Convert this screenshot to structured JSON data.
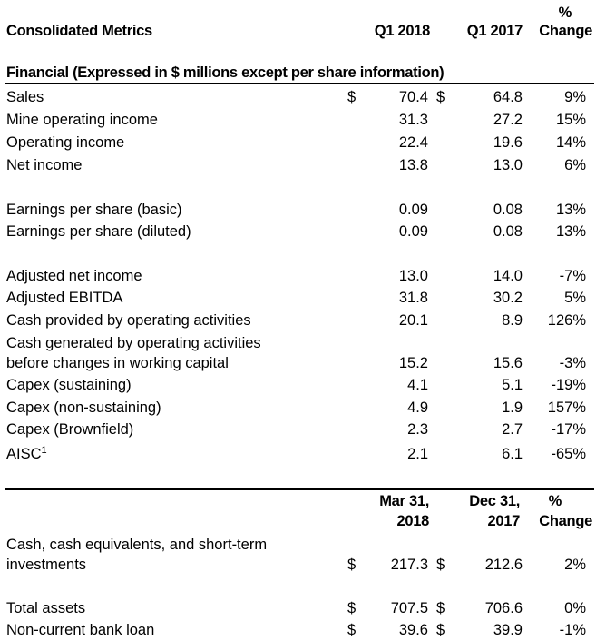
{
  "header": {
    "title": "Consolidated Metrics",
    "col1": "Q1 2018",
    "col2": "Q1 2017",
    "col3_line1": "%",
    "col3_line2": "Change"
  },
  "section_title": "Financial (Expressed in $ millions except per share information)",
  "currency_symbol": "$",
  "rows": [
    {
      "label": "Sales",
      "v1": "70.4",
      "v2": "64.8",
      "pct": "9%"
    },
    {
      "label": "Mine operating income",
      "v1": "31.3",
      "v2": "27.2",
      "pct": "15%"
    },
    {
      "label": "Operating income",
      "v1": "22.4",
      "v2": "19.6",
      "pct": "14%"
    },
    {
      "label": "Net income",
      "v1": "13.8",
      "v2": "13.0",
      "pct": "6%"
    },
    {
      "label": "Earnings per share (basic)",
      "v1": "0.09",
      "v2": "0.08",
      "pct": "13%"
    },
    {
      "label": "Earnings per share (diluted)",
      "v1": "0.09",
      "v2": "0.08",
      "pct": "13%"
    },
    {
      "label": "Adjusted net income",
      "v1": "13.0",
      "v2": "14.0",
      "pct": "-7%"
    },
    {
      "label": "Adjusted EBITDA",
      "v1": "31.8",
      "v2": "30.2",
      "pct": "5%"
    },
    {
      "label": "Cash provided by operating activities",
      "v1": "20.1",
      "v2": "8.9",
      "pct": "126%"
    },
    {
      "label_line1": "Cash generated by operating activities",
      "label": "before changes in working capital",
      "v1": "15.2",
      "v2": "15.6",
      "pct": "-3%"
    },
    {
      "label": "Capex (sustaining)",
      "v1": "4.1",
      "v2": "5.1",
      "pct": "-19%"
    },
    {
      "label": "Capex (non-sustaining)",
      "v1": "4.9",
      "v2": "1.9",
      "pct": "157%"
    },
    {
      "label": "Capex (Brownfield)",
      "v1": "2.3",
      "v2": "2.7",
      "pct": "-17%"
    },
    {
      "label": "AISC",
      "footnote": "1",
      "v1": "2.1",
      "v2": "6.1",
      "pct": "-65%"
    }
  ],
  "balance_header": {
    "col1_line1": "Mar 31,",
    "col1_line2": "2018",
    "col2_line1": "Dec 31,",
    "col2_line2": "2017",
    "col3_line1": "%",
    "col3_line2": "Change"
  },
  "balance_rows": [
    {
      "label_line1": "Cash, cash equivalents, and short-term",
      "label": "investments",
      "v1": "217.3",
      "v2": "212.6",
      "pct": "2%"
    },
    {
      "label": "Total assets",
      "v1": "707.5",
      "v2": "706.6",
      "pct": "0%"
    },
    {
      "label": "Non-current bank loan",
      "v1": "39.6",
      "v2": "39.9",
      "pct": "-1%"
    }
  ]
}
